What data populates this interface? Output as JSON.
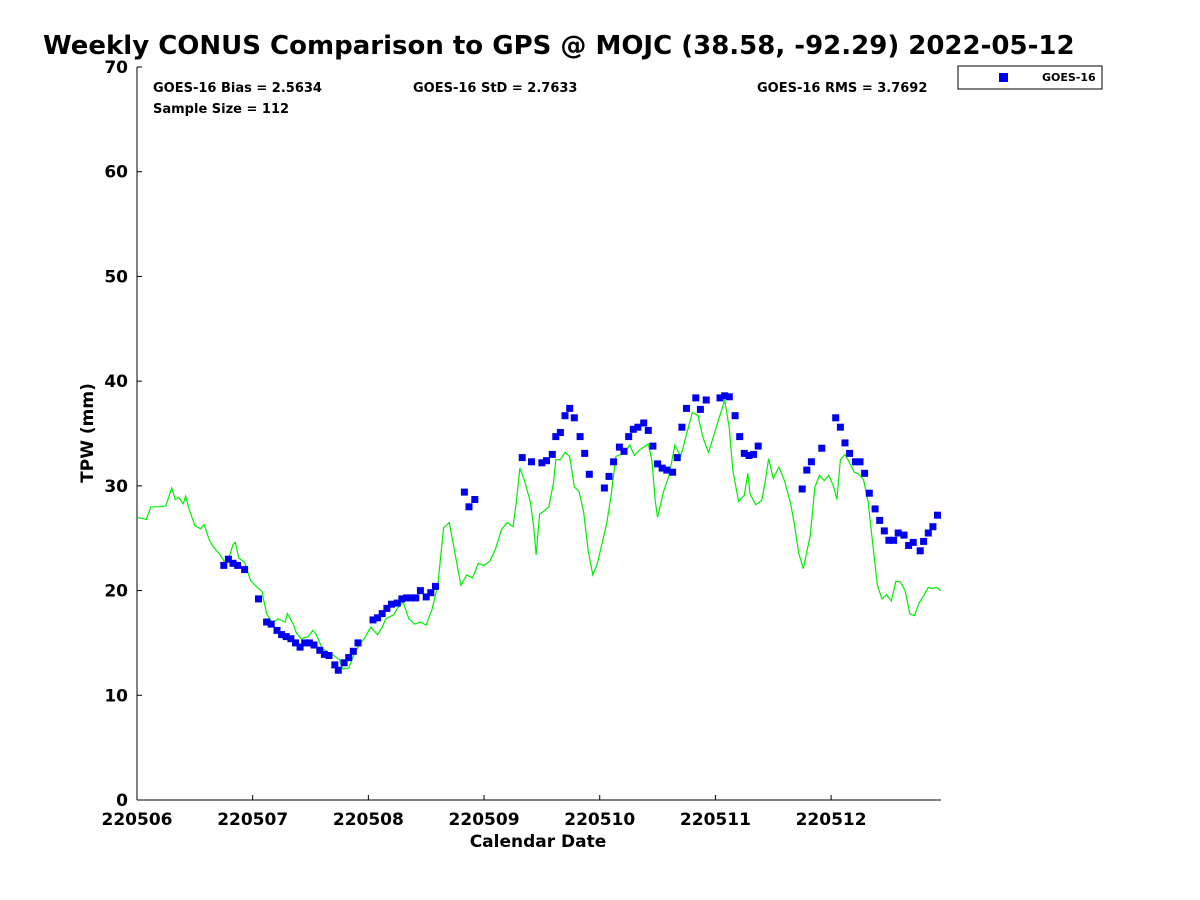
{
  "chart_data": {
    "type": "scatter",
    "title": "Weekly CONUS Comparison to GPS @ MOJC (38.58, -92.29) 2022-05-12",
    "xlabel": "Calendar Date",
    "ylabel": "TPW (mm)",
    "ylim": [
      0,
      70
    ],
    "xlim": [
      0,
      6.95
    ],
    "yticks": [
      0,
      10,
      20,
      30,
      40,
      50,
      60,
      70
    ],
    "xticks": [
      {
        "pos": 0,
        "label": "220506"
      },
      {
        "pos": 1,
        "label": "220507"
      },
      {
        "pos": 2,
        "label": "220508"
      },
      {
        "pos": 3,
        "label": "220509"
      },
      {
        "pos": 4,
        "label": "220510"
      },
      {
        "pos": 5,
        "label": "220511"
      },
      {
        "pos": 6,
        "label": "220512"
      }
    ],
    "grid": false,
    "legend_position": "top-right, outside plot",
    "stats": {
      "bias": "GOES-16 Bias = 2.5634",
      "std": "GOES-16 StD = 2.7633",
      "rms": "GOES-16 RMS = 3.7692",
      "sample": "Sample Size = 112"
    },
    "series": [
      {
        "name": "GOES-16",
        "kind": "points",
        "color": "#0000ee",
        "points": [
          [
            0.75,
            22.4
          ],
          [
            0.79,
            23.0
          ],
          [
            0.83,
            22.6
          ],
          [
            0.87,
            22.4
          ],
          [
            0.93,
            22.0
          ],
          [
            1.05,
            19.2
          ],
          [
            1.12,
            17.0
          ],
          [
            1.16,
            16.8
          ],
          [
            1.21,
            16.2
          ],
          [
            1.25,
            15.8
          ],
          [
            1.29,
            15.6
          ],
          [
            1.33,
            15.4
          ],
          [
            1.37,
            15.0
          ],
          [
            1.41,
            14.6
          ],
          [
            1.45,
            15.0
          ],
          [
            1.49,
            15.0
          ],
          [
            1.53,
            14.8
          ],
          [
            1.58,
            14.3
          ],
          [
            1.62,
            13.9
          ],
          [
            1.66,
            13.8
          ],
          [
            1.71,
            12.9
          ],
          [
            1.74,
            12.4
          ],
          [
            1.79,
            13.1
          ],
          [
            1.83,
            13.6
          ],
          [
            1.87,
            14.2
          ],
          [
            1.91,
            15.0
          ],
          [
            2.04,
            17.2
          ],
          [
            2.08,
            17.4
          ],
          [
            2.12,
            17.8
          ],
          [
            2.16,
            18.3
          ],
          [
            2.2,
            18.7
          ],
          [
            2.25,
            18.8
          ],
          [
            2.29,
            19.2
          ],
          [
            2.33,
            19.3
          ],
          [
            2.37,
            19.3
          ],
          [
            2.41,
            19.3
          ],
          [
            2.45,
            20.0
          ],
          [
            2.5,
            19.4
          ],
          [
            2.54,
            19.8
          ],
          [
            2.58,
            20.4
          ],
          [
            2.83,
            29.4
          ],
          [
            2.87,
            28.0
          ],
          [
            2.92,
            28.7
          ],
          [
            3.33,
            32.7
          ],
          [
            3.41,
            32.3
          ],
          [
            3.5,
            32.2
          ],
          [
            3.54,
            32.4
          ],
          [
            3.59,
            33.0
          ],
          [
            3.62,
            34.7
          ],
          [
            3.66,
            35.1
          ],
          [
            3.7,
            36.7
          ],
          [
            3.74,
            37.4
          ],
          [
            3.78,
            36.5
          ],
          [
            3.83,
            34.7
          ],
          [
            3.87,
            33.1
          ],
          [
            3.91,
            31.1
          ],
          [
            4.04,
            29.8
          ],
          [
            4.08,
            30.9
          ],
          [
            4.12,
            32.3
          ],
          [
            4.17,
            33.7
          ],
          [
            4.21,
            33.3
          ],
          [
            4.25,
            34.7
          ],
          [
            4.29,
            35.4
          ],
          [
            4.33,
            35.6
          ],
          [
            4.38,
            36.0
          ],
          [
            4.42,
            35.3
          ],
          [
            4.46,
            33.8
          ],
          [
            4.5,
            32.1
          ],
          [
            4.54,
            31.7
          ],
          [
            4.58,
            31.5
          ],
          [
            4.63,
            31.3
          ],
          [
            4.67,
            32.7
          ],
          [
            4.71,
            35.6
          ],
          [
            4.75,
            37.4
          ],
          [
            4.83,
            38.4
          ],
          [
            4.87,
            37.3
          ],
          [
            4.92,
            38.2
          ],
          [
            5.04,
            38.4
          ],
          [
            5.08,
            38.6
          ],
          [
            5.12,
            38.5
          ],
          [
            5.17,
            36.7
          ],
          [
            5.21,
            34.7
          ],
          [
            5.25,
            33.1
          ],
          [
            5.29,
            32.9
          ],
          [
            5.33,
            33.0
          ],
          [
            5.37,
            33.8
          ],
          [
            5.75,
            29.7
          ],
          [
            5.79,
            31.5
          ],
          [
            5.83,
            32.3
          ],
          [
            5.92,
            33.6
          ],
          [
            6.04,
            36.5
          ],
          [
            6.08,
            35.6
          ],
          [
            6.12,
            34.1
          ],
          [
            6.16,
            33.1
          ],
          [
            6.21,
            32.3
          ],
          [
            6.25,
            32.3
          ],
          [
            6.29,
            31.2
          ],
          [
            6.33,
            29.3
          ],
          [
            6.38,
            27.8
          ],
          [
            6.42,
            26.7
          ],
          [
            6.46,
            25.7
          ],
          [
            6.5,
            24.8
          ],
          [
            6.54,
            24.8
          ],
          [
            6.58,
            25.5
          ],
          [
            6.63,
            25.3
          ],
          [
            6.67,
            24.3
          ],
          [
            6.71,
            24.6
          ],
          [
            6.77,
            23.8
          ],
          [
            6.8,
            24.7
          ],
          [
            6.84,
            25.5
          ],
          [
            6.88,
            26.1
          ],
          [
            6.92,
            27.2
          ]
        ]
      },
      {
        "name": "",
        "kind": "line",
        "color": "#00ee00",
        "points": [
          [
            0,
            27.0
          ],
          [
            0.08,
            26.8
          ],
          [
            0.12,
            28.0
          ],
          [
            0.18,
            28.0
          ],
          [
            0.25,
            28.1
          ],
          [
            0.3,
            29.8
          ],
          [
            0.33,
            28.7
          ],
          [
            0.36,
            28.9
          ],
          [
            0.4,
            28.3
          ],
          [
            0.42,
            29.0
          ],
          [
            0.45,
            27.8
          ],
          [
            0.5,
            26.2
          ],
          [
            0.55,
            25.9
          ],
          [
            0.58,
            26.3
          ],
          [
            0.62,
            25.0
          ],
          [
            0.65,
            24.3
          ],
          [
            0.72,
            23.4
          ],
          [
            0.77,
            22.5
          ],
          [
            0.8,
            23.3
          ],
          [
            0.83,
            24.4
          ],
          [
            0.85,
            24.6
          ],
          [
            0.88,
            23.1
          ],
          [
            0.93,
            22.7
          ],
          [
            0.98,
            21.0
          ],
          [
            1.03,
            20.4
          ],
          [
            1.08,
            19.9
          ],
          [
            1.12,
            17.8
          ],
          [
            1.17,
            16.9
          ],
          [
            1.22,
            17.3
          ],
          [
            1.28,
            17.0
          ],
          [
            1.3,
            17.8
          ],
          [
            1.35,
            16.8
          ],
          [
            1.38,
            15.9
          ],
          [
            1.42,
            15.4
          ],
          [
            1.48,
            15.6
          ],
          [
            1.52,
            16.2
          ],
          [
            1.55,
            15.8
          ],
          [
            1.6,
            14.5
          ],
          [
            1.65,
            14.1
          ],
          [
            1.7,
            13.8
          ],
          [
            1.75,
            13.4
          ],
          [
            1.78,
            12.5
          ],
          [
            1.83,
            12.6
          ],
          [
            1.88,
            14.0
          ],
          [
            1.92,
            14.8
          ],
          [
            1.97,
            15.5
          ],
          [
            2.02,
            16.5
          ],
          [
            2.08,
            15.8
          ],
          [
            2.12,
            16.5
          ],
          [
            2.15,
            17.3
          ],
          [
            2.22,
            17.7
          ],
          [
            2.25,
            18.3
          ],
          [
            2.3,
            18.9
          ],
          [
            2.35,
            17.3
          ],
          [
            2.4,
            16.8
          ],
          [
            2.45,
            17.0
          ],
          [
            2.5,
            16.7
          ],
          [
            2.55,
            18.2
          ],
          [
            2.6,
            20.5
          ],
          [
            2.65,
            26.0
          ],
          [
            2.7,
            26.5
          ],
          [
            2.75,
            23.5
          ],
          [
            2.8,
            20.5
          ],
          [
            2.85,
            21.5
          ],
          [
            2.9,
            21.2
          ],
          [
            2.95,
            22.6
          ],
          [
            3.0,
            22.4
          ],
          [
            3.05,
            22.8
          ],
          [
            3.1,
            24.0
          ],
          [
            3.15,
            25.8
          ],
          [
            3.2,
            26.5
          ],
          [
            3.25,
            26.1
          ],
          [
            3.28,
            28.5
          ],
          [
            3.31,
            31.7
          ],
          [
            3.35,
            30.5
          ],
          [
            3.4,
            28.5
          ],
          [
            3.43,
            26.0
          ],
          [
            3.45,
            23.4
          ],
          [
            3.48,
            27.3
          ],
          [
            3.52,
            27.6
          ],
          [
            3.56,
            28.0
          ],
          [
            3.6,
            30.3
          ],
          [
            3.62,
            32.5
          ],
          [
            3.66,
            32.5
          ],
          [
            3.7,
            33.2
          ],
          [
            3.74,
            32.8
          ],
          [
            3.78,
            29.9
          ],
          [
            3.82,
            29.5
          ],
          [
            3.86,
            27.6
          ],
          [
            3.9,
            23.8
          ],
          [
            3.94,
            21.5
          ],
          [
            3.98,
            22.6
          ],
          [
            4.02,
            24.5
          ],
          [
            4.06,
            26.4
          ],
          [
            4.1,
            29.2
          ],
          [
            4.14,
            32.8
          ],
          [
            4.18,
            33.0
          ],
          [
            4.22,
            33.3
          ],
          [
            4.26,
            33.9
          ],
          [
            4.3,
            32.9
          ],
          [
            4.34,
            33.4
          ],
          [
            4.38,
            33.7
          ],
          [
            4.42,
            34.0
          ],
          [
            4.45,
            32.5
          ],
          [
            4.48,
            28.5
          ],
          [
            4.5,
            27.0
          ],
          [
            4.55,
            29.4
          ],
          [
            4.6,
            31.0
          ],
          [
            4.65,
            33.9
          ],
          [
            4.7,
            32.8
          ],
          [
            4.75,
            34.9
          ],
          [
            4.8,
            37.0
          ],
          [
            4.85,
            36.7
          ],
          [
            4.88,
            35.2
          ],
          [
            4.9,
            34.4
          ],
          [
            4.94,
            33.2
          ],
          [
            4.98,
            34.6
          ],
          [
            5.03,
            36.4
          ],
          [
            5.08,
            38.2
          ],
          [
            5.12,
            35.5
          ],
          [
            5.15,
            31.5
          ],
          [
            5.2,
            28.5
          ],
          [
            5.25,
            29.1
          ],
          [
            5.28,
            31.2
          ],
          [
            5.3,
            29.2
          ],
          [
            5.35,
            28.2
          ],
          [
            5.4,
            28.6
          ],
          [
            5.43,
            30.4
          ],
          [
            5.46,
            32.6
          ],
          [
            5.5,
            30.7
          ],
          [
            5.55,
            31.8
          ],
          [
            5.6,
            30.4
          ],
          [
            5.65,
            28.3
          ],
          [
            5.68,
            26.5
          ],
          [
            5.72,
            23.6
          ],
          [
            5.76,
            22.1
          ],
          [
            5.82,
            25.3
          ],
          [
            5.86,
            29.9
          ],
          [
            5.9,
            31.0
          ],
          [
            5.94,
            30.5
          ],
          [
            5.98,
            31.0
          ],
          [
            6.02,
            30.0
          ],
          [
            6.05,
            28.7
          ],
          [
            6.08,
            32.5
          ],
          [
            6.12,
            33.0
          ],
          [
            6.16,
            32.2
          ],
          [
            6.2,
            31.3
          ],
          [
            6.24,
            31.1
          ],
          [
            6.28,
            30.6
          ],
          [
            6.32,
            28.5
          ],
          [
            6.36,
            24.5
          ],
          [
            6.4,
            20.5
          ],
          [
            6.44,
            19.2
          ],
          [
            6.48,
            19.6
          ],
          [
            6.52,
            19.0
          ],
          [
            6.56,
            20.9
          ],
          [
            6.6,
            20.8
          ],
          [
            6.64,
            20.0
          ],
          [
            6.68,
            17.8
          ],
          [
            6.72,
            17.6
          ],
          [
            6.76,
            18.8
          ],
          [
            6.8,
            19.5
          ],
          [
            6.84,
            20.3
          ],
          [
            6.88,
            20.2
          ],
          [
            6.91,
            20.3
          ],
          [
            6.95,
            20.0
          ]
        ]
      }
    ]
  }
}
